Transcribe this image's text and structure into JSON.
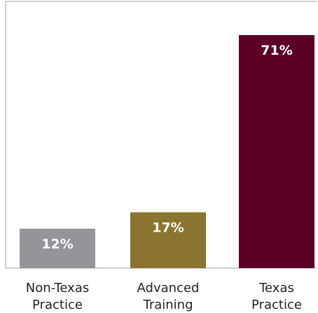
{
  "chart_data": {
    "type": "bar",
    "title": "",
    "xlabel": "",
    "ylabel": "",
    "ylim": [
      0,
      75
    ],
    "grid": false,
    "legend": "none",
    "categories": [
      [
        "Non-Texas",
        "Practice"
      ],
      [
        "Advanced",
        "Training"
      ],
      [
        "Texas",
        "Practice"
      ]
    ],
    "values": [
      12,
      17,
      71
    ],
    "data_labels": [
      "12%",
      "17%",
      "71%"
    ],
    "unit": "%",
    "colors": [
      "#939598",
      "#8b7432",
      "#5c0025"
    ],
    "axis_color": "#bfbfbf"
  }
}
